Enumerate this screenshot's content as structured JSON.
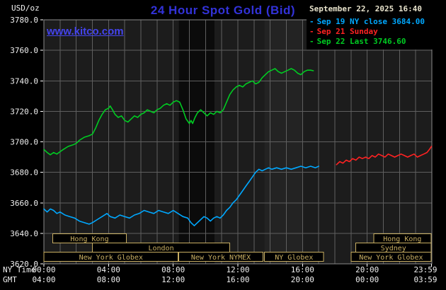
{
  "colors": {
    "page_bg": "#000000",
    "plot_bg": "#1c1c1c",
    "grid": "#5f5f5f",
    "plot_border": "#8a8a8a",
    "axis_text": "#f0f0f0",
    "tick": "#ffffff",
    "title": "#3232d8",
    "watermark": "#4444ee",
    "timestamp_text": "#e8e3cc",
    "session": "#c8ae62"
  },
  "header": {
    "unit_label": "USD/oz",
    "title": "24 Hour Spot Gold (Bid)",
    "watermark": "www.kitco.com",
    "timestamp": "September 22, 2025 16:40"
  },
  "legend": [
    {
      "dash": "-",
      "label": "Sep 19 NY close 3684.00",
      "color": "#00a8ff"
    },
    {
      "dash": "-",
      "label": "Sep 21 Sunday",
      "color": "#ff2222"
    },
    {
      "dash": "-",
      "label": "Sep 22 Last 3746.60",
      "color": "#00cc22"
    }
  ],
  "axes": {
    "y_tick_labels": [
      "3780.0",
      "3760.0",
      "3740.0",
      "3720.0",
      "3700.0",
      "3680.0",
      "3660.0",
      "3640.0",
      "3620.0"
    ],
    "y_ticks": [
      3780,
      3760,
      3740,
      3720,
      3700,
      3680,
      3660,
      3640,
      3620
    ],
    "x_tick_hours": [
      0,
      4,
      8,
      12,
      16,
      20,
      23.983
    ],
    "x_axis_rows": [
      {
        "name": "NY Time",
        "labels": [
          "00:00",
          "04:00",
          "08:00",
          "12:00",
          "16:00",
          "20:00",
          "23:59"
        ]
      },
      {
        "name": "GMT",
        "labels": [
          "04:00",
          "08:00",
          "12:00",
          "16:00",
          "20:00",
          "00:00",
          "03:59"
        ]
      }
    ]
  },
  "chart_data": {
    "type": "line",
    "title": "24 Hour Spot Gold (Bid)",
    "ylabel": "USD/oz",
    "ylim": [
      3620,
      3780
    ],
    "xlim_hours": [
      0,
      24
    ],
    "grid": true,
    "legend_position": "top-right",
    "bands": [
      {
        "start": 8.35,
        "end": 10.55,
        "color": "#0b0b0b"
      },
      {
        "start": 13.65,
        "end": 16.0,
        "color": "#232323"
      }
    ],
    "series": [
      {
        "name": "Sep 19 NY close",
        "close": 3684.0,
        "color": "#00a8ff",
        "points": [
          [
            0,
            3656
          ],
          [
            0.2,
            3654
          ],
          [
            0.4,
            3656
          ],
          [
            0.6,
            3655
          ],
          [
            0.8,
            3653
          ],
          [
            1.0,
            3654
          ],
          [
            1.3,
            3652
          ],
          [
            1.6,
            3651
          ],
          [
            1.9,
            3650
          ],
          [
            2.2,
            3648
          ],
          [
            2.5,
            3647
          ],
          [
            2.8,
            3646
          ],
          [
            3.0,
            3647
          ],
          [
            3.3,
            3649
          ],
          [
            3.6,
            3651
          ],
          [
            3.9,
            3653
          ],
          [
            4.1,
            3651
          ],
          [
            4.4,
            3650
          ],
          [
            4.7,
            3652
          ],
          [
            5.0,
            3651
          ],
          [
            5.3,
            3650
          ],
          [
            5.6,
            3652
          ],
          [
            5.9,
            3653
          ],
          [
            6.2,
            3655
          ],
          [
            6.5,
            3654
          ],
          [
            6.8,
            3653
          ],
          [
            7.1,
            3655
          ],
          [
            7.4,
            3654
          ],
          [
            7.7,
            3653
          ],
          [
            8.0,
            3655
          ],
          [
            8.3,
            3653
          ],
          [
            8.6,
            3651
          ],
          [
            8.9,
            3650
          ],
          [
            9.1,
            3647
          ],
          [
            9.3,
            3645
          ],
          [
            9.5,
            3647
          ],
          [
            9.7,
            3649
          ],
          [
            9.9,
            3651
          ],
          [
            10.1,
            3650
          ],
          [
            10.3,
            3648
          ],
          [
            10.5,
            3650
          ],
          [
            10.7,
            3651
          ],
          [
            10.9,
            3650
          ],
          [
            11.1,
            3652
          ],
          [
            11.3,
            3655
          ],
          [
            11.5,
            3657
          ],
          [
            11.7,
            3660
          ],
          [
            11.9,
            3662
          ],
          [
            12.1,
            3665
          ],
          [
            12.3,
            3668
          ],
          [
            12.5,
            3671
          ],
          [
            12.7,
            3674
          ],
          [
            12.9,
            3677
          ],
          [
            13.1,
            3680
          ],
          [
            13.3,
            3682
          ],
          [
            13.5,
            3681
          ],
          [
            13.7,
            3682
          ],
          [
            13.9,
            3683
          ],
          [
            14.1,
            3682
          ],
          [
            14.4,
            3683
          ],
          [
            14.7,
            3682
          ],
          [
            15.0,
            3683
          ],
          [
            15.3,
            3682
          ],
          [
            15.6,
            3683
          ],
          [
            15.9,
            3684
          ],
          [
            16.2,
            3683
          ],
          [
            16.5,
            3684
          ],
          [
            16.8,
            3683
          ],
          [
            17.0,
            3684
          ]
        ]
      },
      {
        "name": "Sep 21 Sunday",
        "color": "#ff2222",
        "points": [
          [
            18.1,
            3685
          ],
          [
            18.3,
            3687
          ],
          [
            18.5,
            3686
          ],
          [
            18.7,
            3688
          ],
          [
            18.9,
            3687
          ],
          [
            19.1,
            3689
          ],
          [
            19.3,
            3688
          ],
          [
            19.5,
            3690
          ],
          [
            19.7,
            3689
          ],
          [
            19.9,
            3690
          ],
          [
            20.1,
            3689
          ],
          [
            20.3,
            3691
          ],
          [
            20.5,
            3690
          ],
          [
            20.7,
            3692
          ],
          [
            20.9,
            3691
          ],
          [
            21.1,
            3690
          ],
          [
            21.3,
            3692
          ],
          [
            21.5,
            3691
          ],
          [
            21.7,
            3690
          ],
          [
            21.9,
            3691
          ],
          [
            22.1,
            3692
          ],
          [
            22.3,
            3691
          ],
          [
            22.5,
            3690
          ],
          [
            22.7,
            3691
          ],
          [
            22.9,
            3692
          ],
          [
            23.1,
            3690
          ],
          [
            23.3,
            3691
          ],
          [
            23.5,
            3692
          ],
          [
            23.7,
            3693
          ],
          [
            23.85,
            3695
          ],
          [
            23.98,
            3697
          ]
        ]
      },
      {
        "name": "Sep 22 Last",
        "last": 3746.6,
        "color": "#00cc22",
        "points": [
          [
            0,
            3695
          ],
          [
            0.2,
            3693
          ],
          [
            0.4,
            3691.5
          ],
          [
            0.6,
            3693
          ],
          [
            0.8,
            3692
          ],
          [
            1.0,
            3693.5
          ],
          [
            1.2,
            3695
          ],
          [
            1.5,
            3697
          ],
          [
            1.8,
            3698
          ],
          [
            2.0,
            3699
          ],
          [
            2.2,
            3701
          ],
          [
            2.5,
            3703
          ],
          [
            2.8,
            3704
          ],
          [
            3.0,
            3705
          ],
          [
            3.2,
            3709
          ],
          [
            3.4,
            3714
          ],
          [
            3.6,
            3718
          ],
          [
            3.8,
            3721
          ],
          [
            4.0,
            3722
          ],
          [
            4.1,
            3723.5
          ],
          [
            4.25,
            3721
          ],
          [
            4.4,
            3718
          ],
          [
            4.6,
            3716
          ],
          [
            4.8,
            3717
          ],
          [
            5.0,
            3714
          ],
          [
            5.2,
            3713
          ],
          [
            5.4,
            3715
          ],
          [
            5.6,
            3717
          ],
          [
            5.8,
            3716
          ],
          [
            6.0,
            3718
          ],
          [
            6.2,
            3719
          ],
          [
            6.4,
            3721
          ],
          [
            6.6,
            3720
          ],
          [
            6.8,
            3719
          ],
          [
            7.0,
            3721
          ],
          [
            7.2,
            3722
          ],
          [
            7.4,
            3724
          ],
          [
            7.6,
            3725
          ],
          [
            7.8,
            3724
          ],
          [
            8.0,
            3726
          ],
          [
            8.2,
            3727
          ],
          [
            8.4,
            3726
          ],
          [
            8.6,
            3721
          ],
          [
            8.8,
            3715
          ],
          [
            9.0,
            3712
          ],
          [
            9.1,
            3714
          ],
          [
            9.2,
            3712
          ],
          [
            9.35,
            3716
          ],
          [
            9.5,
            3719
          ],
          [
            9.7,
            3721
          ],
          [
            9.9,
            3719
          ],
          [
            10.1,
            3717
          ],
          [
            10.3,
            3719
          ],
          [
            10.5,
            3718
          ],
          [
            10.7,
            3720
          ],
          [
            10.9,
            3719
          ],
          [
            11.1,
            3721
          ],
          [
            11.3,
            3726
          ],
          [
            11.5,
            3731
          ],
          [
            11.7,
            3734
          ],
          [
            11.9,
            3736
          ],
          [
            12.1,
            3737
          ],
          [
            12.3,
            3736
          ],
          [
            12.5,
            3738
          ],
          [
            12.7,
            3739
          ],
          [
            12.9,
            3740
          ],
          [
            13.1,
            3738
          ],
          [
            13.3,
            3739
          ],
          [
            13.5,
            3742
          ],
          [
            13.7,
            3744
          ],
          [
            13.9,
            3746
          ],
          [
            14.1,
            3747
          ],
          [
            14.3,
            3748
          ],
          [
            14.5,
            3746
          ],
          [
            14.7,
            3745
          ],
          [
            14.9,
            3746
          ],
          [
            15.1,
            3747
          ],
          [
            15.3,
            3748
          ],
          [
            15.5,
            3747
          ],
          [
            15.7,
            3745
          ],
          [
            15.9,
            3744
          ],
          [
            16.1,
            3746
          ],
          [
            16.3,
            3747
          ],
          [
            16.5,
            3747
          ],
          [
            16.67,
            3746.6
          ]
        ]
      }
    ],
    "sessions": [
      {
        "label": "Hong Kong",
        "row": 0,
        "start": 0.55,
        "end": 5.1
      },
      {
        "label": "Hong Kong",
        "row": 0,
        "start": 20.4,
        "end": 23.95
      },
      {
        "label": "London",
        "row": 1,
        "start": 3.0,
        "end": 11.5
      },
      {
        "label": "Sydney",
        "row": 1,
        "start": 19.3,
        "end": 23.95
      },
      {
        "label": "New York Globex",
        "row": 2,
        "start": 0.0,
        "end": 8.3
      },
      {
        "label": "New York NYMEX",
        "row": 2,
        "start": 8.35,
        "end": 13.55
      },
      {
        "label": "NY Globex",
        "row": 2,
        "start": 13.65,
        "end": 17.3
      },
      {
        "label": "New York Globex",
        "row": 2,
        "start": 19.0,
        "end": 23.95
      }
    ]
  }
}
